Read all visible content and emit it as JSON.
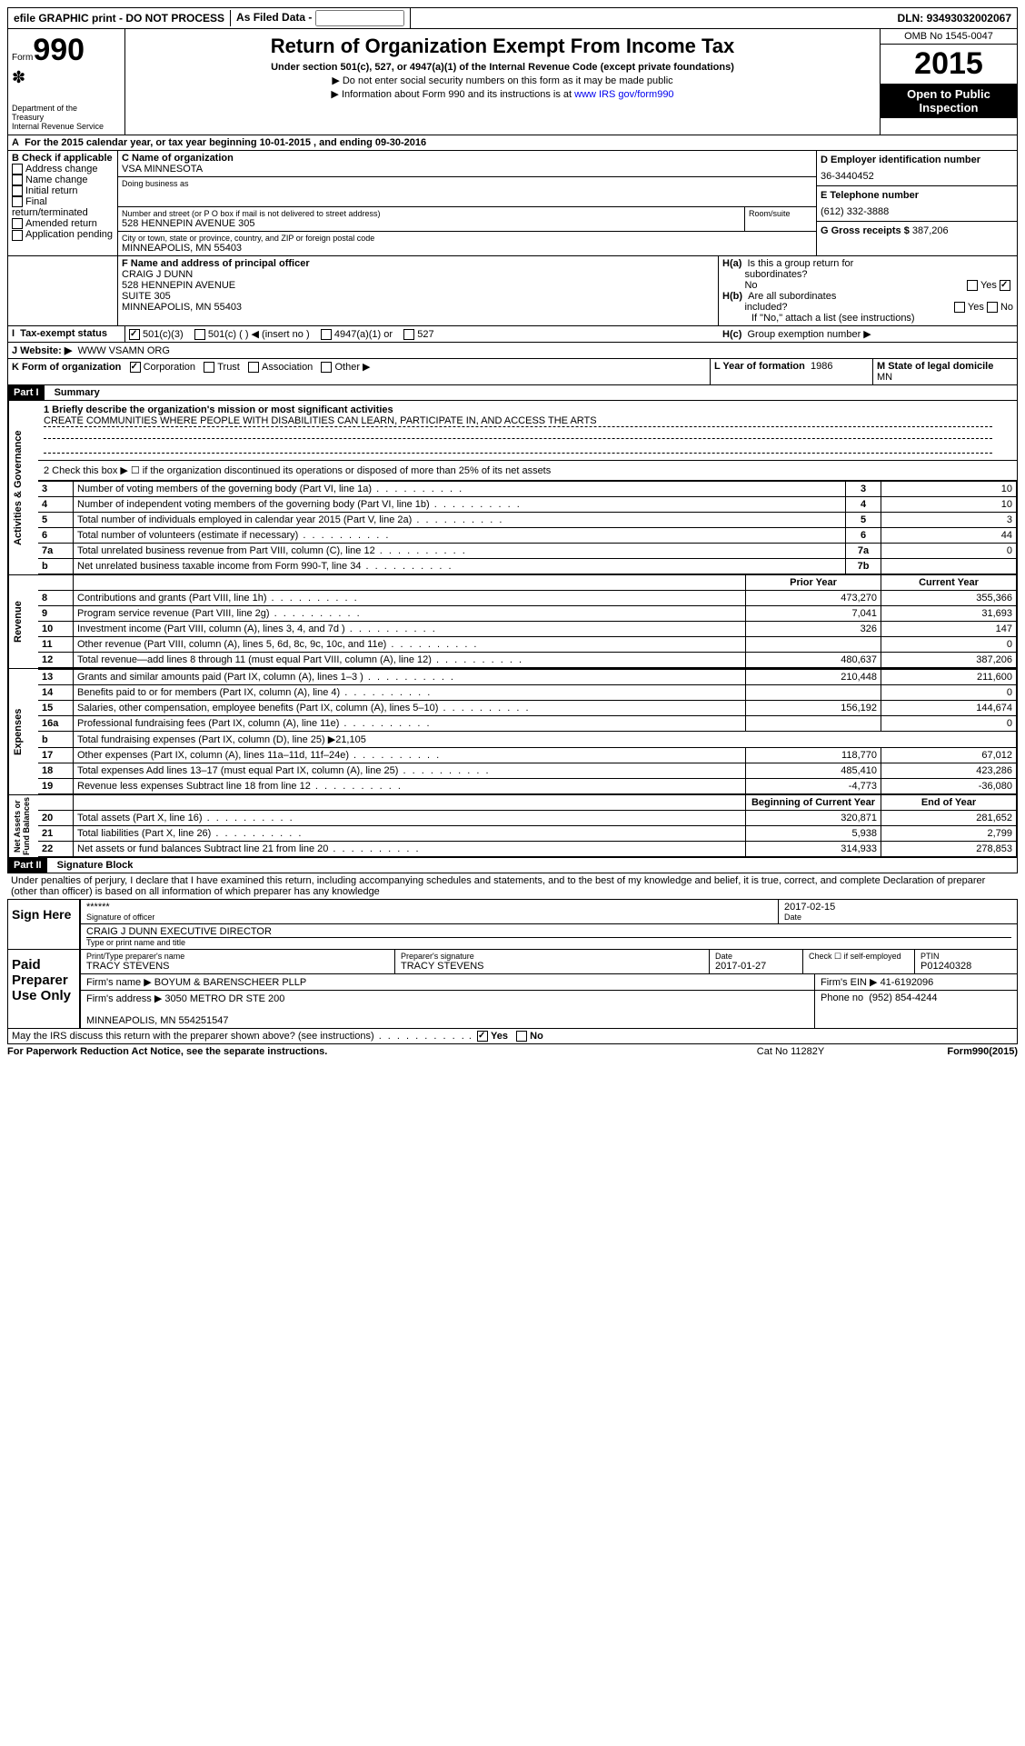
{
  "topbar": {
    "efile": "efile GRAPHIC print - DO NOT PROCESS",
    "asfiled": "As Filed Data -",
    "dln_label": "DLN:",
    "dln": "93493032002067"
  },
  "header": {
    "form_label": "Form",
    "form_number": "990",
    "dept": "Department of the Treasury\nInternal Revenue Service",
    "title": "Return of Organization Exempt From Income Tax",
    "subtitle": "Under section 501(c), 527, or 4947(a)(1) of the Internal Revenue Code (except private foundations)",
    "note1": "▶ Do not enter social security numbers on this form as it may be made public",
    "note2_prefix": "▶ Information about Form 990 and its instructions is at ",
    "note2_link": "www IRS gov/form990",
    "omb": "OMB No 1545-0047",
    "year": "2015",
    "open": "Open to Public Inspection"
  },
  "lineA": {
    "text_prefix": "For the 2015 calendar year, or tax year beginning ",
    "begin": "10-01-2015",
    "mid": " , and ending ",
    "end": "09-30-2016"
  },
  "sectionB": {
    "label": "B Check if applicable",
    "items": [
      "Address change",
      "Name change",
      "Initial return",
      "Final return/terminated",
      "Amended return",
      "Application pending"
    ]
  },
  "sectionC": {
    "label": "C Name of organization",
    "name": "VSA MINNESOTA",
    "dba_label": "Doing business as",
    "dba": "",
    "street_label": "Number and street (or P O box if mail is not delivered to street address)",
    "room_label": "Room/suite",
    "street": "528 HENNEPIN AVENUE 305",
    "city_label": "City or town, state or province, country, and ZIP or foreign postal code",
    "city": "MINNEAPOLIS, MN  55403"
  },
  "sectionD": {
    "label": "D Employer identification number",
    "value": "36-3440452"
  },
  "sectionE": {
    "label": "E Telephone number",
    "value": "(612) 332-3888"
  },
  "sectionG": {
    "label": "G Gross receipts $",
    "value": "387,206"
  },
  "sectionF": {
    "label": "F  Name and address of principal officer",
    "lines": [
      "CRAIG J DUNN",
      "528 HENNEPIN AVENUE",
      "SUITE 305",
      "MINNEAPOLIS, MN  55403"
    ]
  },
  "sectionH": {
    "a_label": "H(a)  Is this a group return for subordinates?",
    "a_value": "No",
    "b_label": "H(b)  Are all subordinates included?",
    "b_note": "If \"No,\" attach a list (see instructions)",
    "c_label": "H(c)  Group exemption number ▶"
  },
  "sectionI": {
    "label": "I  Tax-exempt status",
    "opts": [
      "501(c)(3)",
      "501(c) (  ) ◀ (insert no )",
      "4947(a)(1) or",
      "527"
    ]
  },
  "sectionJ": {
    "label": "J  Website: ▶",
    "value": "WWW VSAMN ORG"
  },
  "sectionK": {
    "label": "K Form of organization",
    "opts": [
      "Corporation",
      "Trust",
      "Association",
      "Other ▶"
    ]
  },
  "sectionL": {
    "label": "L Year of formation",
    "value": "1986"
  },
  "sectionM": {
    "label": "M State of legal domicile",
    "value": "MN"
  },
  "part1": {
    "header": "Part I",
    "title": "Summary",
    "line1_label": "1 Briefly describe the organization's mission or most significant activities",
    "line1_text": "CREATE COMMUNITIES WHERE PEOPLE WITH DISABILITIES CAN LEARN, PARTICIPATE IN, AND ACCESS THE ARTS",
    "line2": "2  Check this box ▶ ☐ if the organization discontinued its operations or disposed of more than 25% of its net assets",
    "governance_rows": [
      {
        "n": "3",
        "text": "Number of voting members of the governing body (Part VI, line 1a)",
        "ref": "3",
        "val": "10"
      },
      {
        "n": "4",
        "text": "Number of independent voting members of the governing body (Part VI, line 1b)",
        "ref": "4",
        "val": "10"
      },
      {
        "n": "5",
        "text": "Total number of individuals employed in calendar year 2015 (Part V, line 2a)",
        "ref": "5",
        "val": "3"
      },
      {
        "n": "6",
        "text": "Total number of volunteers (estimate if necessary)",
        "ref": "6",
        "val": "44"
      },
      {
        "n": "7a",
        "text": "Total unrelated business revenue from Part VIII, column (C), line 12",
        "ref": "7a",
        "val": "0"
      },
      {
        "n": "b",
        "text": "Net unrelated business taxable income from Form 990-T, line 34",
        "ref": "7b",
        "val": ""
      }
    ],
    "prior_year_label": "Prior Year",
    "current_year_label": "Current Year",
    "revenue_rows": [
      {
        "n": "8",
        "text": "Contributions and grants (Part VIII, line 1h)",
        "py": "473,270",
        "cy": "355,366"
      },
      {
        "n": "9",
        "text": "Program service revenue (Part VIII, line 2g)",
        "py": "7,041",
        "cy": "31,693"
      },
      {
        "n": "10",
        "text": "Investment income (Part VIII, column (A), lines 3, 4, and 7d )",
        "py": "326",
        "cy": "147"
      },
      {
        "n": "11",
        "text": "Other revenue (Part VIII, column (A), lines 5, 6d, 8c, 9c, 10c, and 11e)",
        "py": "",
        "cy": "0"
      },
      {
        "n": "12",
        "text": "Total revenue—add lines 8 through 11 (must equal Part VIII, column (A), line 12)",
        "py": "480,637",
        "cy": "387,206"
      }
    ],
    "expense_rows": [
      {
        "n": "13",
        "text": "Grants and similar amounts paid (Part IX, column (A), lines 1–3 )",
        "py": "210,448",
        "cy": "211,600"
      },
      {
        "n": "14",
        "text": "Benefits paid to or for members (Part IX, column (A), line 4)",
        "py": "",
        "cy": "0"
      },
      {
        "n": "15",
        "text": "Salaries, other compensation, employee benefits (Part IX, column (A), lines 5–10)",
        "py": "156,192",
        "cy": "144,674"
      },
      {
        "n": "16a",
        "text": "Professional fundraising fees (Part IX, column (A), line 11e)",
        "py": "",
        "cy": "0"
      },
      {
        "n": "b",
        "text": "Total fundraising expenses (Part IX, column (D), line 25) ▶21,105",
        "py": "—",
        "cy": "—"
      },
      {
        "n": "17",
        "text": "Other expenses (Part IX, column (A), lines 11a–11d, 11f–24e)",
        "py": "118,770",
        "cy": "67,012"
      },
      {
        "n": "18",
        "text": "Total expenses Add lines 13–17 (must equal Part IX, column (A), line 25)",
        "py": "485,410",
        "cy": "423,286"
      },
      {
        "n": "19",
        "text": "Revenue less expenses Subtract line 18 from line 12",
        "py": "-4,773",
        "cy": "-36,080"
      }
    ],
    "boy_label": "Beginning of Current Year",
    "eoy_label": "End of Year",
    "balance_rows": [
      {
        "n": "20",
        "text": "Total assets (Part X, line 16)",
        "py": "320,871",
        "cy": "281,652"
      },
      {
        "n": "21",
        "text": "Total liabilities (Part X, line 26)",
        "py": "5,938",
        "cy": "2,799"
      },
      {
        "n": "22",
        "text": "Net assets or fund balances Subtract line 21 from line 20",
        "py": "314,933",
        "cy": "278,853"
      }
    ]
  },
  "part2": {
    "header": "Part II",
    "title": "Signature Block",
    "declaration": "Under penalties of perjury, I declare that I have examined this return, including accompanying schedules and statements, and to the best of my knowledge and belief, it is true, correct, and complete Declaration of preparer (other than officer) is based on all information of which preparer has any knowledge",
    "sign_here": "Sign Here",
    "sig_stars": "******",
    "sig_officer_label": "Signature of officer",
    "sig_date": "2017-02-15",
    "sig_date_label": "Date",
    "officer_name": "CRAIG J DUNN EXECUTIVE DIRECTOR",
    "officer_name_label": "Type or print name and title",
    "paid_label": "Paid Preparer Use Only",
    "preparer_name_label": "Print/Type preparer's name",
    "preparer_name": "TRACY STEVENS",
    "preparer_sig_label": "Preparer's signature",
    "preparer_sig": "TRACY STEVENS",
    "prep_date_label": "Date",
    "prep_date": "2017-01-27",
    "check_self": "Check ☐ if self-employed",
    "ptin_label": "PTIN",
    "ptin": "P01240328",
    "firm_name_label": "Firm's name    ▶",
    "firm_name": "BOYUM & BARENSCHEER PLLP",
    "firm_ein_label": "Firm's EIN ▶",
    "firm_ein": "41-6192096",
    "firm_addr_label": "Firm's address ▶",
    "firm_addr": "3050 METRO DR STE 200",
    "firm_city": "MINNEAPOLIS, MN 554251547",
    "phone_label": "Phone no",
    "phone": "(952) 854-4244",
    "discuss": "May the IRS discuss this return with the preparer shown above? (see instructions)",
    "discuss_yes": "Yes",
    "discuss_no": "No"
  },
  "footer": {
    "paperwork": "For Paperwork Reduction Act Notice, see the separate instructions.",
    "catno": "Cat No 11282Y",
    "formno": "Form 990 (2015)"
  }
}
